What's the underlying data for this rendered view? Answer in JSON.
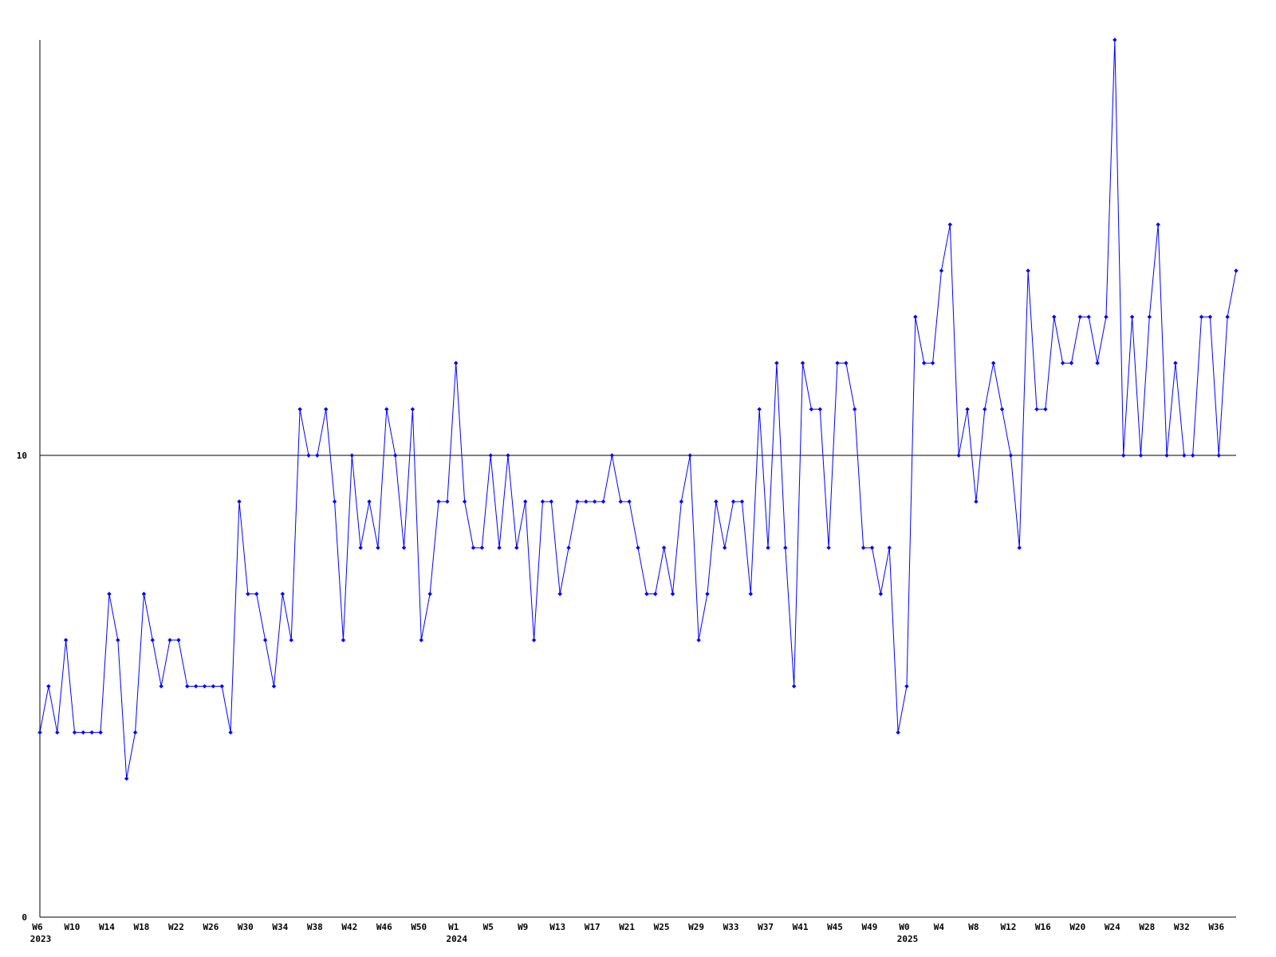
{
  "chart_data": {
    "type": "line",
    "title": "",
    "xlabel": "",
    "ylabel": "",
    "ylim": [
      0,
      19
    ],
    "y_ticks": [
      0,
      10
    ],
    "gridlines_y": [
      10
    ],
    "grid": false,
    "legend": "none",
    "colors": {
      "series": "#0000ff",
      "axis": "#000000",
      "background": "#ffffff"
    },
    "tick_every_points": 4,
    "x_ticks": [
      {
        "label": "W6",
        "year": "2023"
      },
      {
        "label": "W10"
      },
      {
        "label": "W14"
      },
      {
        "label": "W18"
      },
      {
        "label": "W22"
      },
      {
        "label": "W26"
      },
      {
        "label": "W30"
      },
      {
        "label": "W34"
      },
      {
        "label": "W38"
      },
      {
        "label": "W42"
      },
      {
        "label": "W46"
      },
      {
        "label": "W50"
      },
      {
        "label": "W1",
        "year": "2024"
      },
      {
        "label": "W5"
      },
      {
        "label": "W9"
      },
      {
        "label": "W13"
      },
      {
        "label": "W17"
      },
      {
        "label": "W21"
      },
      {
        "label": "W25"
      },
      {
        "label": "W29"
      },
      {
        "label": "W33"
      },
      {
        "label": "W37"
      },
      {
        "label": "W41"
      },
      {
        "label": "W45"
      },
      {
        "label": "W49"
      },
      {
        "label": "W0",
        "year": "2025"
      },
      {
        "label": "W4"
      },
      {
        "label": "W8"
      },
      {
        "label": "W12"
      },
      {
        "label": "W16"
      },
      {
        "label": "W20"
      },
      {
        "label": "W24"
      },
      {
        "label": "W28"
      },
      {
        "label": "W32"
      },
      {
        "label": "W36"
      }
    ],
    "series": [
      {
        "values": [
          4,
          5,
          4,
          6,
          4,
          4,
          4,
          4,
          7,
          6,
          3,
          4,
          7,
          6,
          5,
          6,
          6,
          5,
          5,
          5,
          5,
          5,
          4,
          9,
          7,
          7,
          6,
          5,
          7,
          6,
          11,
          10,
          10,
          11,
          9,
          6,
          10,
          8,
          9,
          8,
          11,
          10,
          8,
          11,
          6,
          7,
          9,
          9,
          12,
          9,
          8,
          8,
          10,
          8,
          10,
          8,
          9,
          6,
          9,
          9,
          7,
          8,
          9,
          9,
          9,
          9,
          10,
          9,
          9,
          8,
          7,
          7,
          8,
          7,
          9,
          10,
          6,
          7,
          9,
          8,
          9,
          9,
          7,
          11,
          8,
          12,
          8,
          5,
          12,
          11,
          11,
          8,
          12,
          12,
          11,
          8,
          8,
          7,
          8,
          4,
          5,
          13,
          12,
          12,
          14,
          15,
          10,
          11,
          9,
          11,
          12,
          11,
          10,
          8,
          14,
          11,
          11,
          13,
          12,
          12,
          13,
          13,
          12,
          13,
          19,
          10,
          13,
          10,
          13,
          15,
          10,
          12,
          10,
          10,
          13,
          13,
          10,
          13,
          14
        ]
      }
    ]
  }
}
